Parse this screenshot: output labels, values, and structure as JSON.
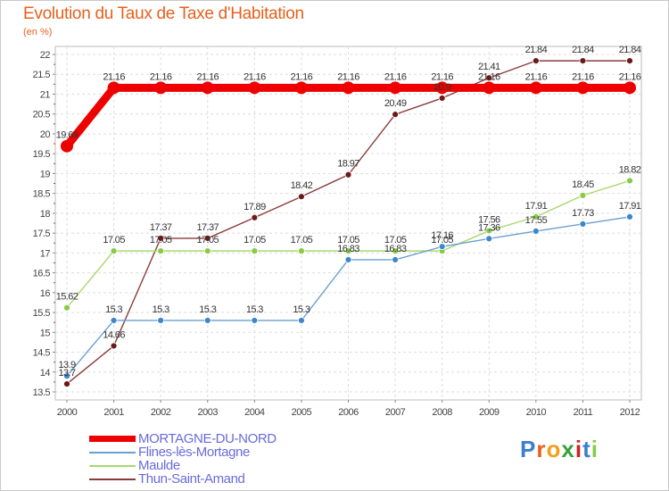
{
  "chart_data": {
    "type": "line",
    "title": "Evolution du Taux de Taxe d'Habitation",
    "ylabel": "(en %)",
    "xlabel": "",
    "x": [
      "2000",
      "2001",
      "2002",
      "2003",
      "2004",
      "2005",
      "2006",
      "2007",
      "2008",
      "2009",
      "2010",
      "2011",
      "2012"
    ],
    "yticks": [
      "13.5",
      "14",
      "14.5",
      "15",
      "15.5",
      "16",
      "16.5",
      "17",
      "17.5",
      "18",
      "18.5",
      "19",
      "19.5",
      "20",
      "20.5",
      "21",
      "21.5",
      "22"
    ],
    "ylim": [
      13.5,
      22
    ],
    "grid": true,
    "legend_position": "bottom-left",
    "series": [
      {
        "name": "MORTAGNE-DU-NORD",
        "color": "#ee0000",
        "line_width": "thick",
        "values": [
          19.69,
          21.16,
          21.16,
          21.16,
          21.16,
          21.16,
          21.16,
          21.16,
          21.16,
          21.16,
          21.16,
          21.16,
          21.16
        ],
        "labels": [
          "19.69",
          "21.16",
          "21.16",
          "21.16",
          "21.16",
          "21.16",
          "21.16",
          "21.16",
          "21.16",
          "21.16",
          "21.16",
          "21.16",
          "21.16"
        ]
      },
      {
        "name": "Flines-lès-Mortagne",
        "color": "#6a9fd0",
        "marker": "#3b87cc",
        "line_width": "thin",
        "values": [
          13.9,
          15.3,
          15.3,
          15.3,
          15.3,
          15.3,
          16.83,
          16.83,
          17.16,
          17.36,
          17.55,
          17.73,
          17.91
        ],
        "labels": [
          "13.9",
          "15.3",
          "15.3",
          "15.3",
          "15.3",
          "15.3",
          "16.83",
          "16.83",
          "17.16",
          "17.36",
          "17.55",
          "17.73",
          "17.91"
        ]
      },
      {
        "name": "Maulde",
        "color": "#a6da6e",
        "marker": "#86cc46",
        "line_width": "thin",
        "values": [
          15.62,
          17.05,
          17.05,
          17.05,
          17.05,
          17.05,
          17.05,
          17.05,
          17.05,
          17.56,
          17.91,
          18.45,
          18.82
        ],
        "labels": [
          "15.62",
          "17.05",
          "17.05",
          "17.05",
          "17.05",
          "17.05",
          "17.05",
          "17.05",
          "17.05",
          "17.56",
          "17.91",
          "18.45",
          "18.82"
        ]
      },
      {
        "name": "Thun-Saint-Amand",
        "color": "#8b3a3a",
        "marker": "#6b1a1a",
        "line_width": "thin",
        "values": [
          13.7,
          14.66,
          17.37,
          17.37,
          17.89,
          18.42,
          18.97,
          20.49,
          20.9,
          21.41,
          21.84,
          21.84,
          21.84
        ],
        "labels": [
          "13.7",
          "14.66",
          "17.37",
          "17.37",
          "17.89",
          "18.42",
          "18.97",
          "20.49",
          "20.9",
          "21.41",
          "21.84",
          "21.84",
          "21.84"
        ]
      }
    ]
  },
  "legend": {
    "items": [
      {
        "label": "MORTAGNE-DU-NORD",
        "color": "#ee0000",
        "text_color": "#6a6adc"
      },
      {
        "label": "Flines-lès-Mortagne",
        "color": "#6a9fd0",
        "text_color": "#6a6adc"
      },
      {
        "label": "Maulde",
        "color": "#a6da6e",
        "text_color": "#6a6adc"
      },
      {
        "label": "Thun-Saint-Amand",
        "color": "#8b3a3a",
        "text_color": "#6a6adc"
      }
    ]
  },
  "logo": {
    "letters": [
      "P",
      "r",
      "o",
      "x",
      "i",
      "t",
      "i"
    ],
    "colors": [
      "#3a7fd0",
      "#e8601c",
      "#f0a020",
      "#3aa03a",
      "#d02020",
      "#3a7fd0",
      "#86cc46"
    ]
  }
}
